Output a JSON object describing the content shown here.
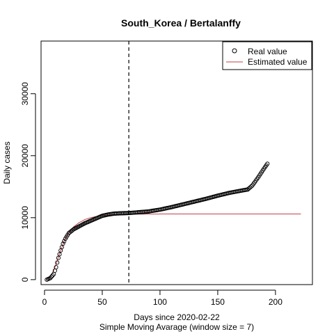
{
  "chart_data": {
    "type": "scatter",
    "title": "South_Korea / Bertalanffy",
    "xlabel": "Days since 2020-02-22",
    "subtitle": "Simple Moving Avarage (window size = 7)",
    "ylabel": "Daily cases",
    "xlim": [
      -3,
      232
    ],
    "ylim": [
      -800,
      38500
    ],
    "xticks": [
      0,
      50,
      100,
      150,
      200
    ],
    "yticks": [
      0,
      10000,
      20000,
      30000
    ],
    "vline_x": 73,
    "legend_position": "top-right",
    "legend": {
      "real": "Real value",
      "estimated": "Estimated value"
    },
    "colors": {
      "real_points": "#000000",
      "estimated_line": "#c1404a"
    },
    "real_keypoints": [
      [
        2,
        0
      ],
      [
        5,
        250
      ],
      [
        8,
        900
      ],
      [
        10,
        2000
      ],
      [
        12,
        3500
      ],
      [
        14,
        4700
      ],
      [
        16,
        5800
      ],
      [
        18,
        6600
      ],
      [
        21,
        7500
      ],
      [
        25,
        8100
      ],
      [
        30,
        8600
      ],
      [
        35,
        9100
      ],
      [
        40,
        9500
      ],
      [
        45,
        9900
      ],
      [
        50,
        10300
      ],
      [
        55,
        10500
      ],
      [
        60,
        10650
      ],
      [
        65,
        10700
      ],
      [
        73,
        10750
      ],
      [
        80,
        10850
      ],
      [
        90,
        11000
      ],
      [
        100,
        11300
      ],
      [
        110,
        11700
      ],
      [
        120,
        12150
      ],
      [
        130,
        12600
      ],
      [
        140,
        13050
      ],
      [
        150,
        13550
      ],
      [
        160,
        14000
      ],
      [
        170,
        14350
      ],
      [
        176,
        14550
      ],
      [
        180,
        15200
      ],
      [
        185,
        16500
      ],
      [
        190,
        17900
      ],
      [
        193,
        18700
      ]
    ],
    "estimated_keypoints": [
      [
        2,
        0
      ],
      [
        5,
        500
      ],
      [
        8,
        1500
      ],
      [
        10,
        2500
      ],
      [
        12,
        3600
      ],
      [
        14,
        4700
      ],
      [
        16,
        5700
      ],
      [
        18,
        6600
      ],
      [
        20,
        7300
      ],
      [
        25,
        8500
      ],
      [
        30,
        9200
      ],
      [
        35,
        9700
      ],
      [
        40,
        10000
      ],
      [
        45,
        10200
      ],
      [
        50,
        10350
      ],
      [
        60,
        10480
      ],
      [
        70,
        10540
      ],
      [
        80,
        10570
      ],
      [
        100,
        10590
      ],
      [
        150,
        10600
      ],
      [
        222,
        10600
      ]
    ]
  }
}
